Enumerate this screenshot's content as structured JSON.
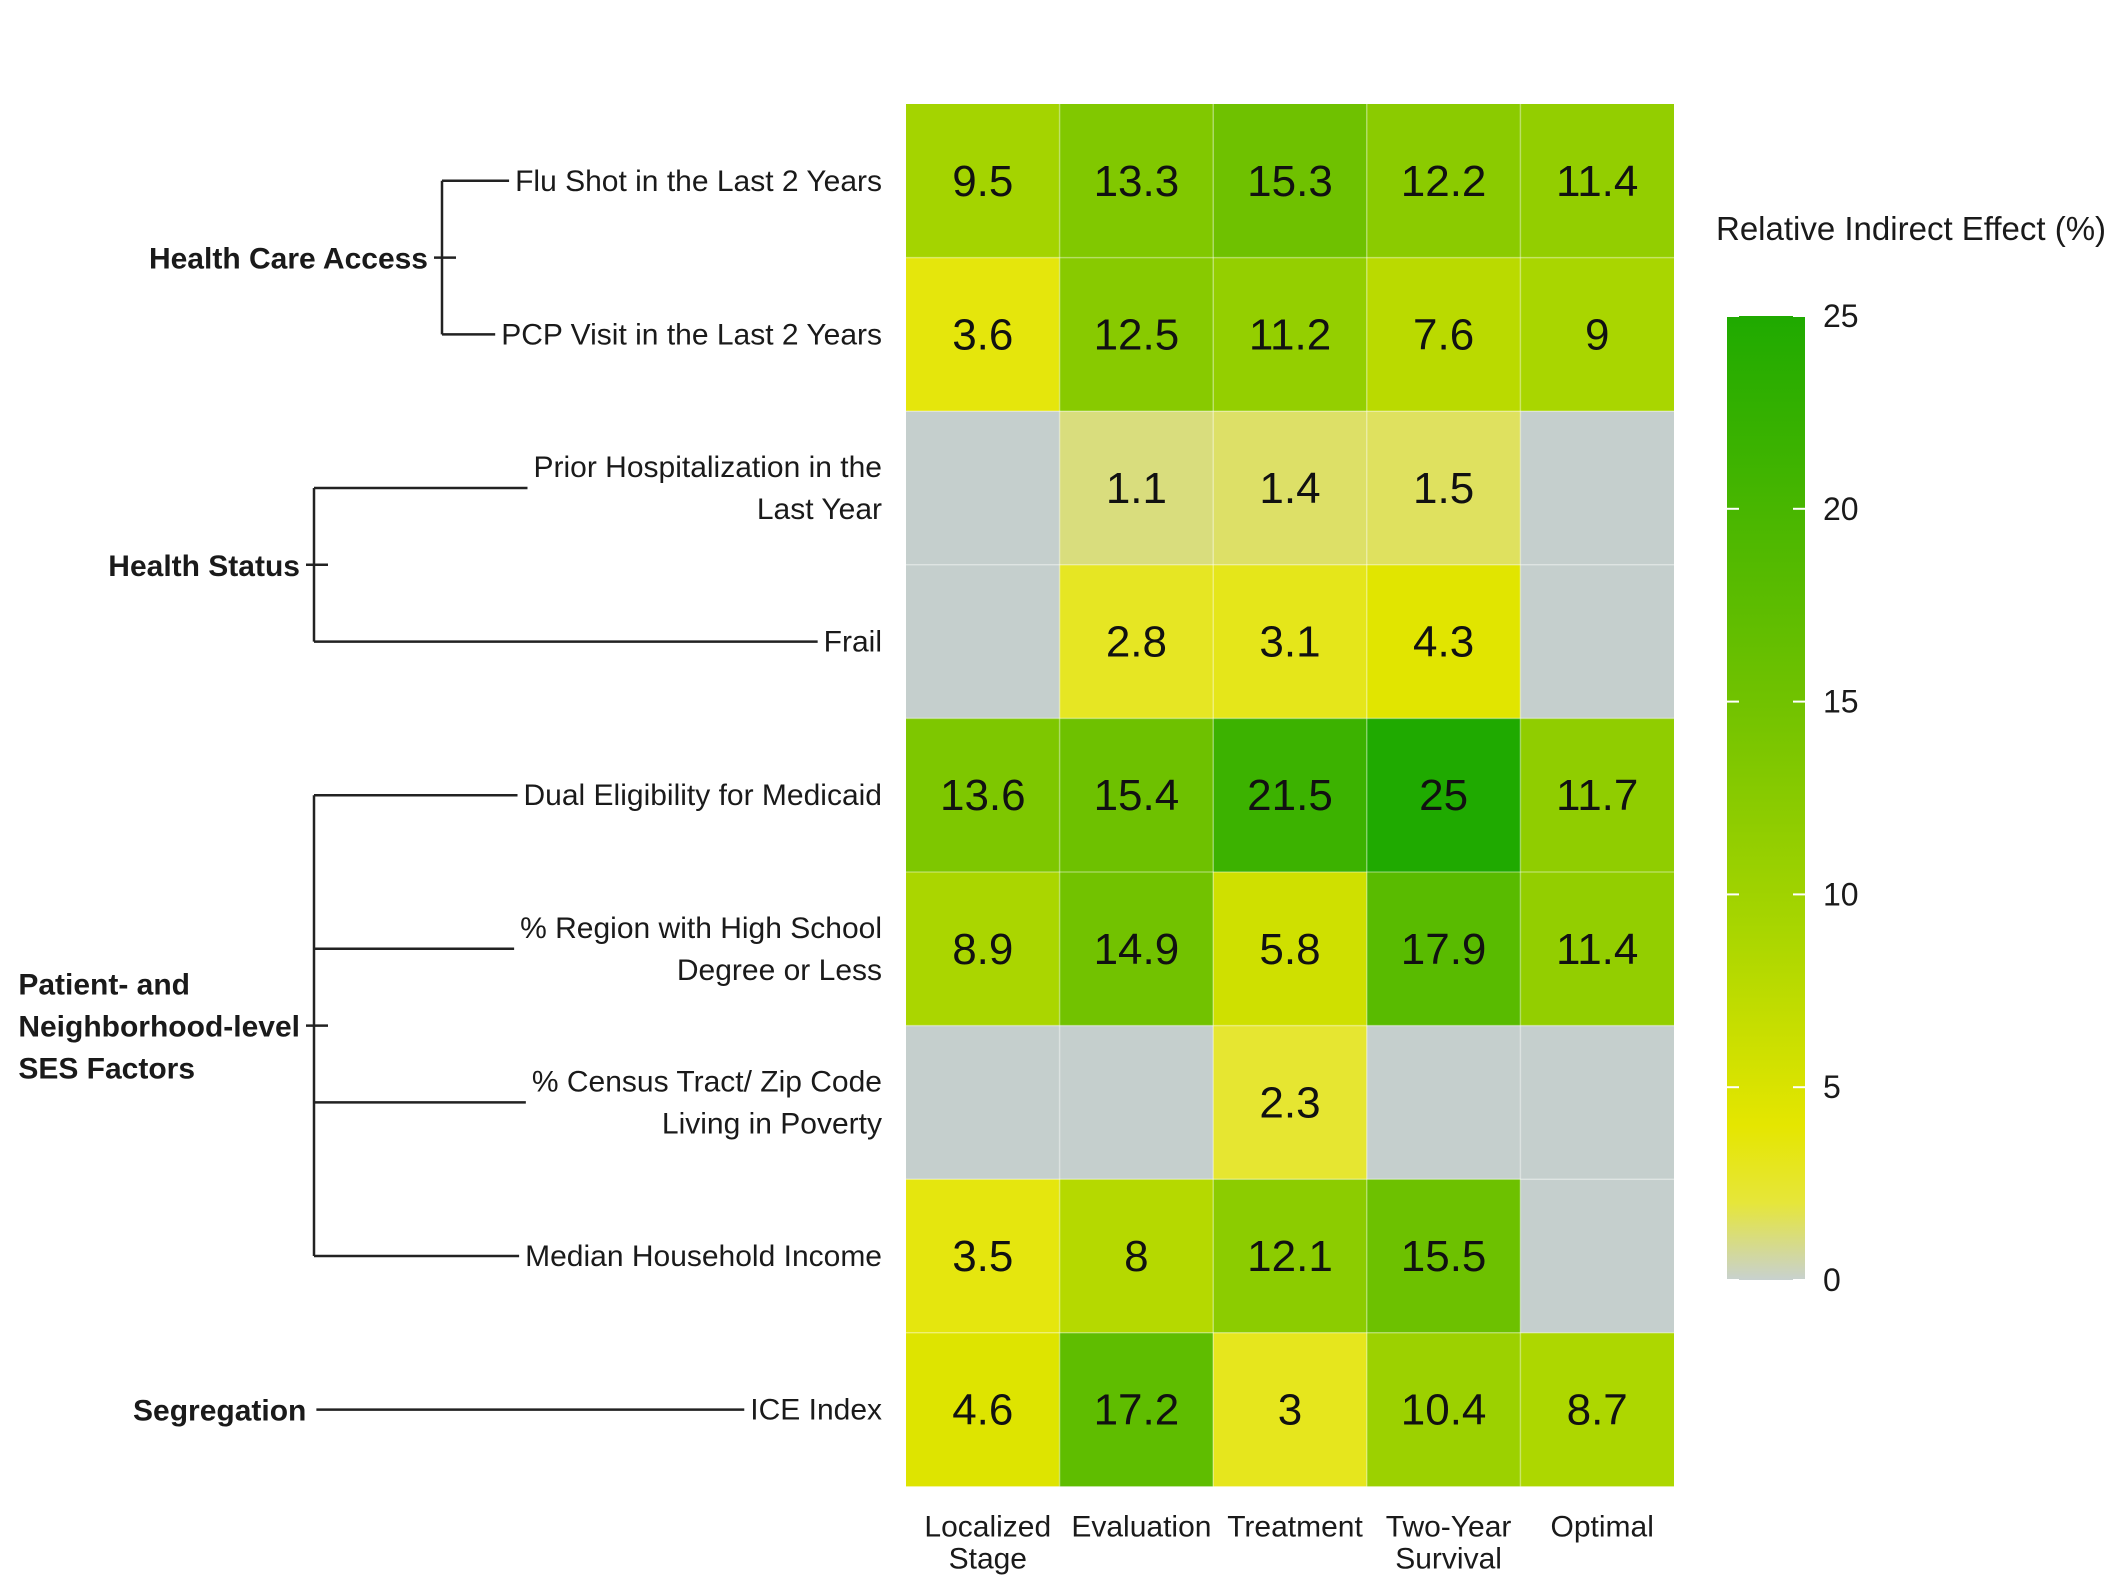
{
  "chart_data": {
    "type": "heatmap",
    "columns": [
      [
        "Localized",
        "Stage"
      ],
      [
        "Evaluation"
      ],
      [
        "Treatment"
      ],
      [
        "Two-Year",
        "Survival"
      ],
      [
        "Optimal"
      ]
    ],
    "rows": [
      {
        "label": [
          "Flu Shot in the Last 2 Years"
        ],
        "values": [
          9.5,
          13.3,
          15.3,
          12.2,
          11.4
        ]
      },
      {
        "label": [
          "PCP Visit in the Last 2 Years"
        ],
        "values": [
          3.6,
          12.5,
          11.2,
          7.6,
          9
        ]
      },
      {
        "label": [
          "Prior Hospitalization in the",
          "Last Year"
        ],
        "values": [
          null,
          1.1,
          1.4,
          1.5,
          null
        ]
      },
      {
        "label": [
          "Frail"
        ],
        "values": [
          null,
          2.8,
          3.1,
          4.3,
          null
        ]
      },
      {
        "label": [
          "Dual Eligibility for Medicaid"
        ],
        "values": [
          13.6,
          15.4,
          21.5,
          25,
          11.7
        ]
      },
      {
        "label": [
          "% Region with High School",
          "Degree or Less"
        ],
        "values": [
          8.9,
          14.9,
          5.8,
          17.9,
          11.4
        ]
      },
      {
        "label": [
          "% Census Tract/ Zip Code",
          "Living in Poverty"
        ],
        "values": [
          null,
          null,
          2.3,
          null,
          null
        ]
      },
      {
        "label": [
          "Median Household Income"
        ],
        "values": [
          3.5,
          8,
          12.1,
          15.5,
          null
        ]
      },
      {
        "label": [
          "ICE Index"
        ],
        "values": [
          4.6,
          17.2,
          3,
          10.4,
          8.7
        ]
      }
    ],
    "groups": [
      {
        "label": [
          "Health Care Access"
        ],
        "rows": [
          0,
          1
        ]
      },
      {
        "label": [
          "Health Status"
        ],
        "rows": [
          2,
          3
        ]
      },
      {
        "label": [
          "Patient- and",
          "Neighborhood-level",
          "SES Factors"
        ],
        "rows": [
          4,
          5,
          6,
          7
        ]
      },
      {
        "label": [
          "Segregation"
        ],
        "rows": [
          8
        ]
      }
    ],
    "legend": {
      "title": "Relative Indirect Effect (%)",
      "min": 0,
      "max": 25,
      "ticks": [
        0,
        5,
        10,
        15,
        20,
        25
      ],
      "placement": "right"
    },
    "colors": {
      "missing": "#c5cfcd",
      "scale": [
        "#c8d1cf",
        "#e6e63a",
        "#e5e600",
        "#a9d600",
        "#71c200",
        "#1faa00"
      ]
    }
  }
}
